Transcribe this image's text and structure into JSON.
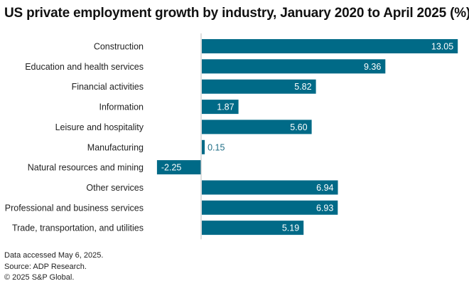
{
  "chart_data": {
    "type": "bar",
    "orientation": "horizontal",
    "title": "US private employment growth by industry, January 2020 to April 2025 (%)",
    "categories": [
      "Construction",
      "Education and health services",
      "Financial activities",
      "Information",
      "Leisure and hospitality",
      "Manufacturing",
      "Natural resources and mining",
      "Other services",
      "Professional and business services",
      "Trade, transportation, and utilities"
    ],
    "values": [
      13.05,
      9.36,
      5.82,
      1.87,
      5.6,
      0.15,
      -2.25,
      6.94,
      6.93,
      5.19
    ],
    "value_labels": [
      "13.05",
      "9.36",
      "5.82",
      "1.87",
      "5.60",
      "0.15",
      "-2.25",
      "6.94",
      "6.93",
      "5.19"
    ],
    "xlabel": "",
    "ylabel": "",
    "xlim": [
      -2.25,
      13.05
    ],
    "grid": false,
    "legend": "none",
    "bar_color": "#006a87",
    "axis_color": "#c8c8c8"
  },
  "footer": {
    "line1": "Data accessed May 6, 2025.",
    "line2": "Source: ADP Research.",
    "line3": "© 2025 S&P Global."
  }
}
